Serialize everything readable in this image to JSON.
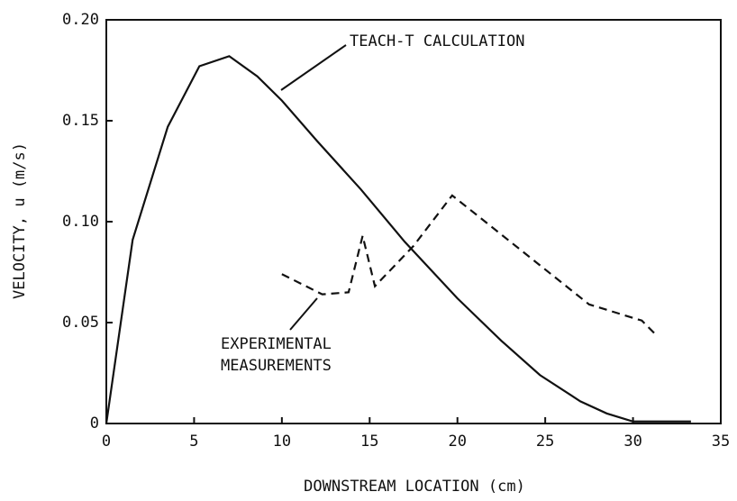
{
  "chart_data": {
    "type": "line",
    "x_label": "DOWNSTREAM LOCATION (cm)",
    "y_label": "VELOCITY, u (m/s)",
    "annotations": [
      "TEACH-T CALCULATION",
      "EXPERIMENTAL",
      "MEASUREMENTS"
    ],
    "xlim": [
      0,
      35
    ],
    "xticks": [
      0,
      5,
      10,
      15,
      20,
      25,
      30,
      35
    ],
    "ylim": [
      0,
      0.2
    ],
    "yticks": [
      0,
      0.05,
      {
        "value": 0.1,
        "label": "0.10"
      },
      0.15,
      {
        "value": 0.2,
        "label": "0.20"
      }
    ],
    "series": [
      {
        "color": "#111111",
        "dash": false,
        "x": [
          0,
          1.5,
          3.5,
          5.3,
          7,
          8.6,
          10,
          12,
          14.5,
          17,
          20,
          22.5,
          24.7,
          27,
          28.5,
          30,
          33.3
        ],
        "values": [
          0,
          0.091,
          0.147,
          0.177,
          0.182,
          0.172,
          0.16,
          0.14,
          0.116,
          0.09,
          0.062,
          0.041,
          0.024,
          0.011,
          0.005,
          0.001,
          0.001
        ]
      },
      {
        "color": "#111111",
        "dash": true,
        "x": [
          10,
          12.3,
          13.8,
          14.6,
          15.3,
          17.5,
          19.7,
          27.5,
          30.5,
          31.3
        ],
        "values": [
          0.074,
          0.064,
          0.065,
          0.093,
          0.068,
          0.088,
          0.113,
          0.059,
          0.051,
          0.044
        ]
      }
    ]
  }
}
